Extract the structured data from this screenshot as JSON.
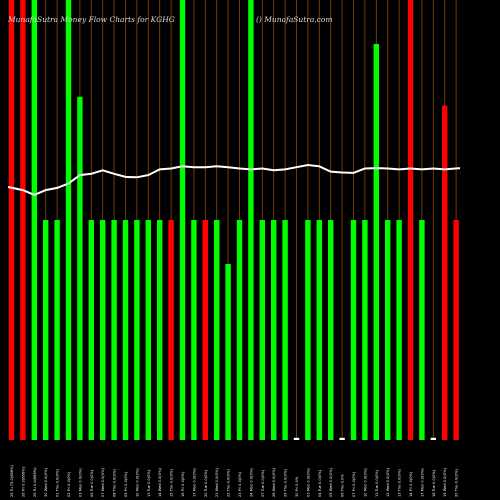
{
  "chart_data": {
    "type": "bar",
    "title_left": "MunafaSutra  Money Flow  Charts for KGHG",
    "title_right": "() MunafaSutra.com",
    "ylim": [
      0,
      100
    ],
    "categories": [
      "25 Tu 75.0(666%)",
      "26 Fri 0.0(666%)",
      "29 Tu 0.0(666%)",
      "30 Wed 0.0(0%)",
      "01 Thu 0.0(0%)",
      "02 Fri 0.0(0%)",
      "03 Mon 0.0(0%)",
      "06 Tue 0.0(0%)",
      "07 Wed 0.0(0%)",
      "08 Thu 0.0(0%)",
      "09 Fri 0.0(0%)",
      "10 Mon 0.0(0%)",
      "13 Tue 0.0(0%)",
      "14 Wed 0.0(0%)",
      "15 Thu 0.0(0%)",
      "16 Fri 0.0(0%)",
      "17 Mon 0.0(0%)",
      "20 Tue 0.0(0%)",
      "21 Wed 0.0(0%)",
      "22 Thu 0.0(0%)",
      "23 Fri 0.0(0%)",
      "24 Mon 0.0(0%)",
      "27 Tue 0.0(0%)",
      "28 Wed 0.0(0%)",
      "29 Thu 0.0(0%)",
      "30 Fri 0.0%",
      "03 Mon 0.0(0%)",
      "04 Tue 0.0(0%)",
      "05 Wed 0.0(0%)",
      "06 Thu 0.0%",
      "07 Fri 0.0(0%)",
      "10 Mon 0.0(0%)",
      "11 Tue 0.0(0%)",
      "12 Wed 0.0(0%)",
      "13 Thu 0.0(0%)",
      "14 Fri 0.0(0%)",
      "17 Mon 0.0(0%)",
      "18 Tue 0.0(0%)",
      "19 Wed 0.0(0%)",
      "20 Thu 0.0(0%)"
    ],
    "series": [
      {
        "values": [
          100,
          100,
          100,
          50,
          50,
          100,
          78,
          50,
          50,
          50,
          50,
          50,
          50,
          50,
          50,
          100,
          50,
          50,
          50,
          40,
          50,
          100,
          50,
          50,
          50,
          0.5,
          50,
          50,
          50,
          0.5,
          50,
          50,
          90,
          50,
          50,
          100,
          50,
          0.5,
          76,
          50
        ],
        "colors": [
          "red",
          "red",
          "lime",
          "lime",
          "lime",
          "lime",
          "lime",
          "lime",
          "lime",
          "lime",
          "lime",
          "lime",
          "lime",
          "lime",
          "red",
          "lime",
          "lime",
          "red",
          "lime",
          "lime",
          "lime",
          "lime",
          "lime",
          "lime",
          "lime",
          "white",
          "lime",
          "lime",
          "lime",
          "white",
          "lime",
          "lime",
          "lime",
          "lime",
          "lime",
          "red",
          "lime",
          "white",
          "red",
          "red"
        ]
      },
      {
        "values": [
          57.5,
          56.8,
          55.7,
          56.8,
          57.3,
          58.3,
          60.2,
          60.5,
          61.3,
          60.5,
          59.8,
          59.7,
          60.2,
          61.5,
          61.7,
          62.2,
          62.0,
          62.0,
          62.2,
          62.0,
          61.7,
          61.5,
          61.7,
          61.3,
          61.5,
          62.0,
          62.5,
          62.2,
          61.0,
          60.8,
          60.7,
          61.7,
          61.8,
          61.7,
          61.5,
          61.7,
          61.5,
          61.7,
          61.5,
          61.8
        ]
      }
    ]
  },
  "colors": {
    "red": "#ff0000",
    "lime": "#00ff00",
    "white": "#ffffff",
    "grid": "#8a4a0a",
    "line": "#ffffff"
  }
}
